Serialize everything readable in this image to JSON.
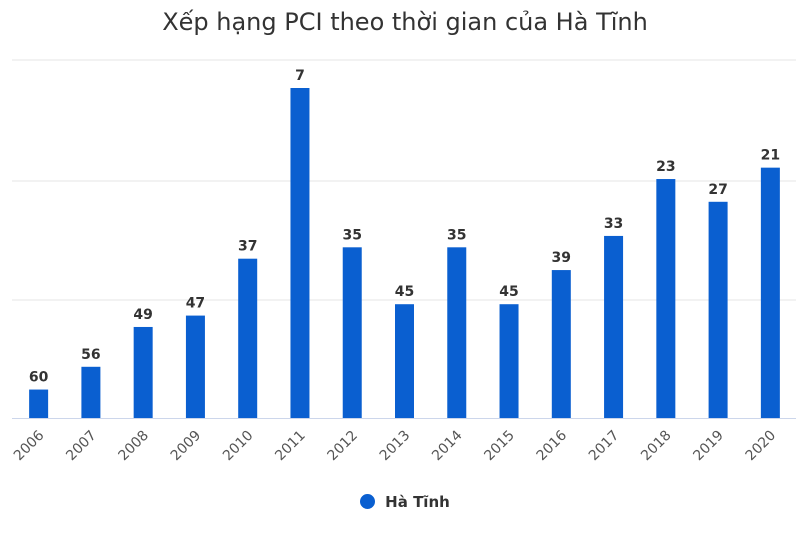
{
  "chart_data": {
    "type": "bar",
    "title": "Xếp hạng PCI theo thời gian của Hà Tĩnh",
    "categories": [
      "2006",
      "2007",
      "2008",
      "2009",
      "2010",
      "2011",
      "2012",
      "2013",
      "2014",
      "2015",
      "2016",
      "2017",
      "2018",
      "2019",
      "2020"
    ],
    "series": [
      {
        "name": "Hà Tĩnh",
        "values": [
          60,
          56,
          49,
          47,
          37,
          7,
          35,
          45,
          35,
          45,
          39,
          33,
          23,
          27,
          21
        ]
      }
    ],
    "scale_note": "bar height reflects ranking inverted (lower rank = taller bar)",
    "ylim": [
      0,
      65
    ],
    "grid": true,
    "legend": "bottom-center",
    "colors": {
      "bar": "#0a5fd0",
      "grid": "#e6e6e6",
      "text": "#333333",
      "tick": "#555555"
    }
  }
}
